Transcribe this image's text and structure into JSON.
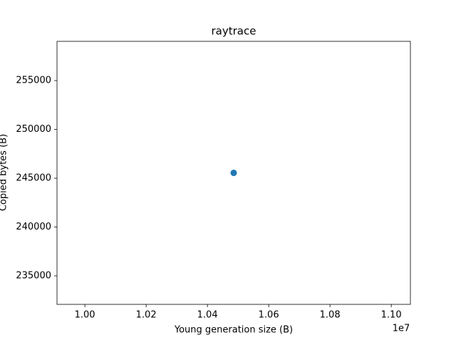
{
  "chart_data": {
    "type": "scatter",
    "title": "raytrace",
    "x_label": "Young generation size (B)",
    "y_label": "Copied bytes (B)",
    "x_offset_label": "1e7",
    "x": [
      10485760
    ],
    "values": [
      245547
    ],
    "color": "#1f77b4",
    "xlim": [
      9909043,
      11062477
    ],
    "xticks": [
      {
        "value": 10000000,
        "label": "1.00"
      },
      {
        "value": 10200000,
        "label": "1.02"
      },
      {
        "value": 10400000,
        "label": "1.04"
      },
      {
        "value": 10600000,
        "label": "1.06"
      },
      {
        "value": 10800000,
        "label": "1.08"
      },
      {
        "value": 11000000,
        "label": "1.10"
      }
    ],
    "ylim": [
      232080,
      259015
    ],
    "yticks": [
      235000,
      240000,
      245000,
      250000,
      255000
    ]
  }
}
